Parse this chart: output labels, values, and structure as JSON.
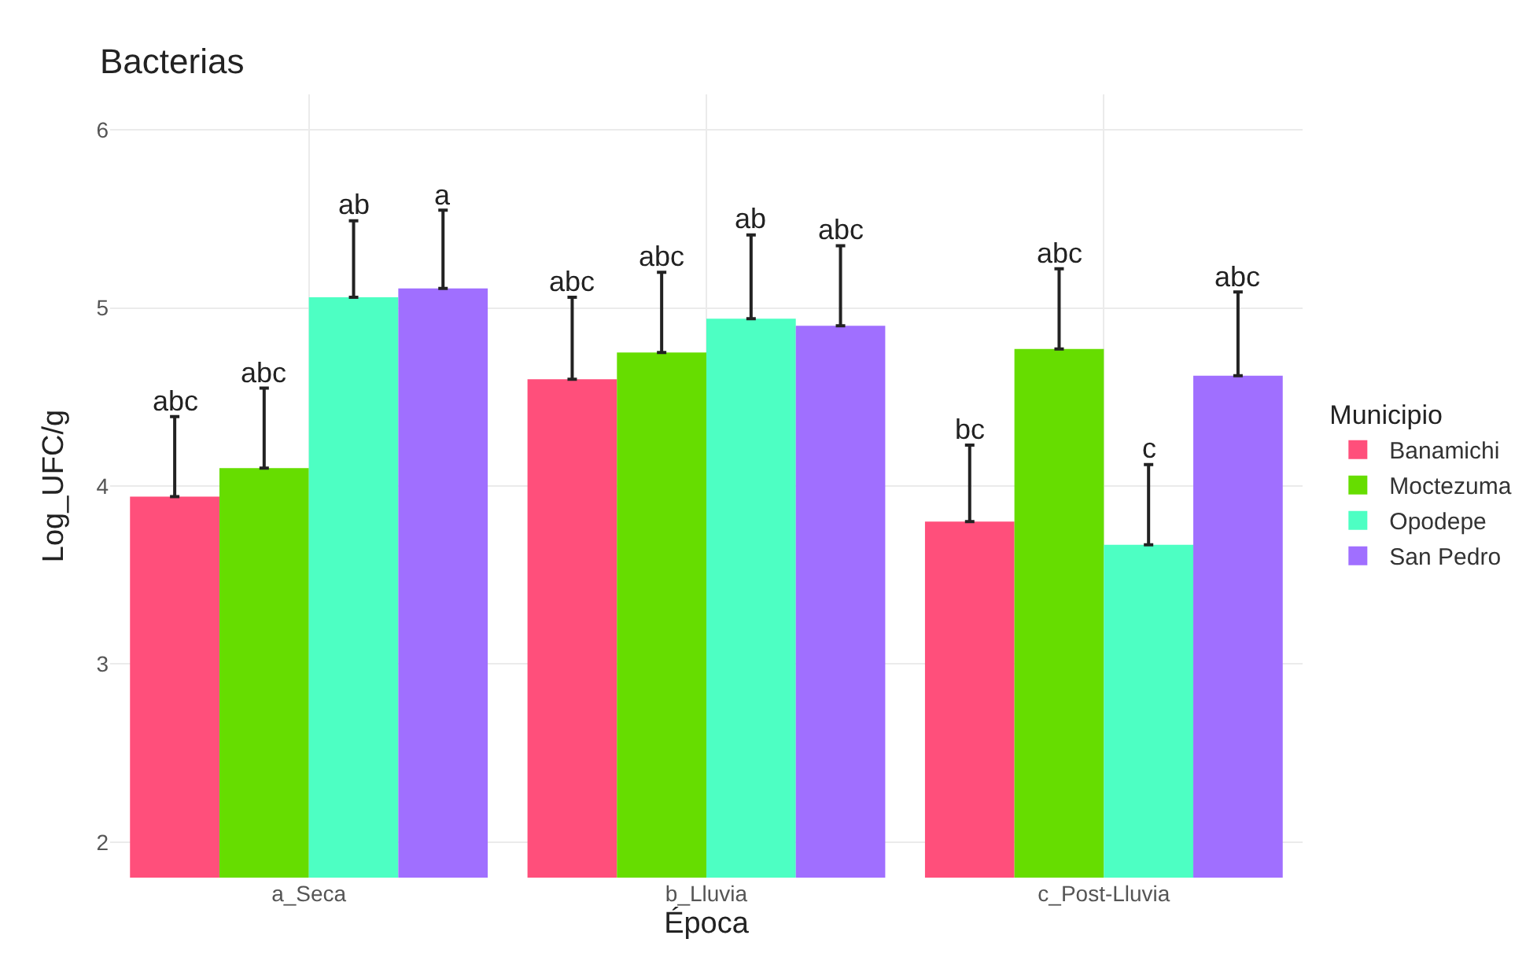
{
  "chart_data": {
    "type": "bar",
    "title": "Bacterias",
    "xlabel": "Época",
    "ylabel": "Log_UFC/g",
    "legend_title": "Municipio",
    "categories": [
      "a_Seca",
      "b_Lluvia",
      "c_Post-Lluvia"
    ],
    "series": [
      {
        "name": "Banamichi",
        "color": "#ff4f7b",
        "values": [
          3.94,
          4.6,
          3.8
        ],
        "errors": [
          [
            3.94,
            4.39
          ],
          [
            4.6,
            5.06
          ],
          [
            3.8,
            4.23
          ]
        ],
        "value_labels": [
          "abc",
          "abc",
          "bc"
        ]
      },
      {
        "name": "Moctezuma",
        "color": "#66dd00",
        "values": [
          4.1,
          4.75,
          4.77
        ],
        "errors": [
          [
            4.1,
            4.55
          ],
          [
            4.75,
            5.2
          ],
          [
            4.77,
            5.22
          ]
        ],
        "value_labels": [
          "abc",
          "abc",
          "abc"
        ]
      },
      {
        "name": "Opodepe",
        "color": "#4dffc3",
        "values": [
          5.06,
          4.94,
          3.67
        ],
        "errors": [
          [
            5.06,
            5.49
          ],
          [
            4.94,
            5.41
          ],
          [
            3.67,
            4.12
          ]
        ],
        "value_labels": [
          "ab",
          "ab",
          "c"
        ]
      },
      {
        "name": "San Pedro",
        "color": "#a06fff",
        "values": [
          5.11,
          4.9,
          4.62
        ],
        "errors": [
          [
            5.11,
            5.55
          ],
          [
            4.9,
            5.35
          ],
          [
            4.62,
            5.09
          ]
        ],
        "value_labels": [
          "a",
          "abc",
          "abc"
        ]
      }
    ],
    "ylim": [
      1.8,
      6.2
    ],
    "yticks": [
      2,
      3,
      4,
      5,
      6
    ],
    "grid": true,
    "legend": "right"
  }
}
